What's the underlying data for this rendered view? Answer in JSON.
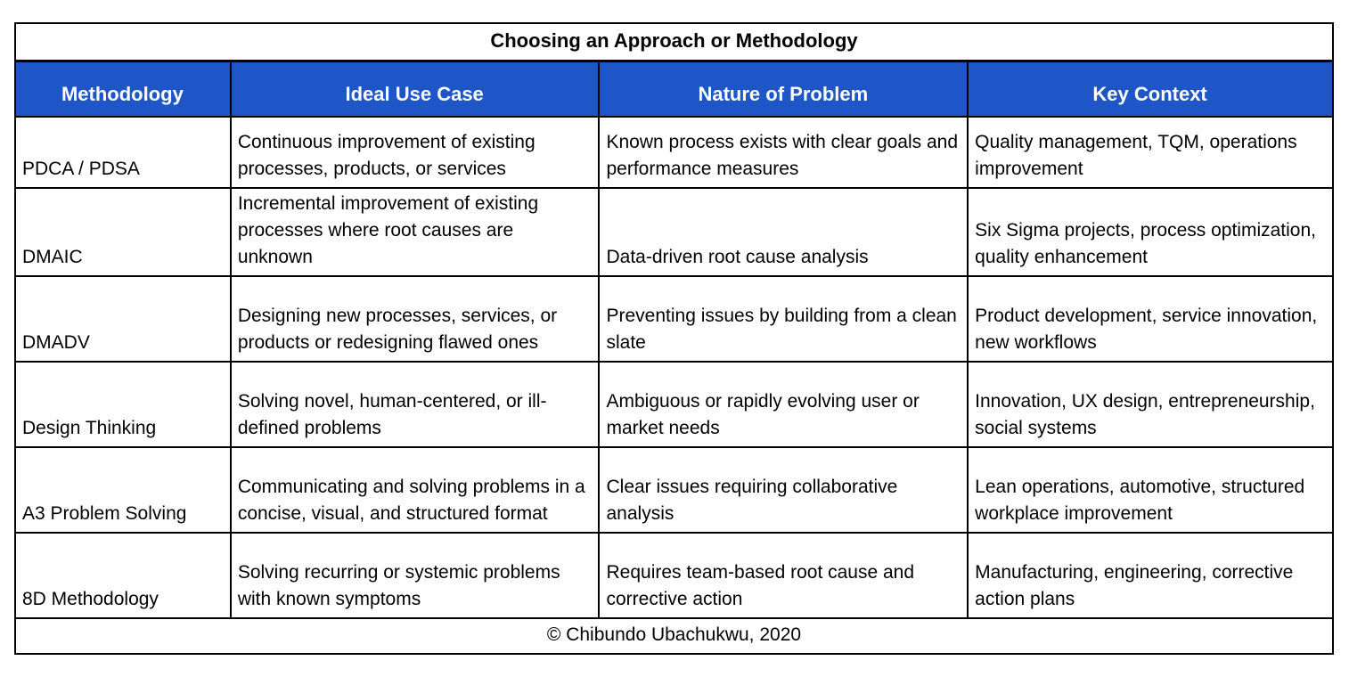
{
  "title": "Choosing an Approach or Methodology",
  "footer": "© Chibundo Ubachukwu, 2020",
  "colors": {
    "header_bg": "#1E56C8",
    "header_text": "#FFFFFF",
    "border": "#000000",
    "body_bg": "#FFFFFF"
  },
  "table": {
    "columns": {
      "methodology": "Methodology",
      "ideal_use_case": "Ideal Use Case",
      "nature_of_problem": "Nature of Problem",
      "key_context": "Key Context"
    },
    "rows": [
      {
        "methodology": "PDCA / PDSA",
        "ideal_use_case": "Continuous improvement of existing processes, products, or services",
        "nature_of_problem": "Known process exists with clear goals and performance measures",
        "key_context": "Quality management, TQM, operations improvement"
      },
      {
        "methodology": "DMAIC",
        "ideal_use_case": "Incremental improvement of existing processes where root causes are unknown",
        "nature_of_problem": "Data-driven root cause analysis",
        "key_context": "Six Sigma projects, process optimization, quality enhancement"
      },
      {
        "methodology": "DMADV",
        "ideal_use_case": "Designing new processes, services, or products or redesigning flawed ones",
        "nature_of_problem": "Preventing issues by building from a clean slate",
        "key_context": "Product development, service innovation, new workflows"
      },
      {
        "methodology": "Design Thinking",
        "ideal_use_case": "Solving novel, human-centered, or ill-defined problems",
        "nature_of_problem": "Ambiguous or rapidly evolving user or market needs",
        "key_context": "Innovation, UX design, entrepreneurship, social systems"
      },
      {
        "methodology": "A3 Problem Solving",
        "ideal_use_case": "Communicating and solving problems in a concise, visual, and structured format",
        "nature_of_problem": "Clear issues requiring collaborative analysis",
        "key_context": "Lean operations, automotive, structured workplace improvement"
      },
      {
        "methodology": "8D Methodology",
        "ideal_use_case": "Solving recurring or systemic problems with known symptoms",
        "nature_of_problem": "Requires team-based root cause and corrective action",
        "key_context": "Manufacturing, engineering, corrective action plans"
      }
    ]
  }
}
